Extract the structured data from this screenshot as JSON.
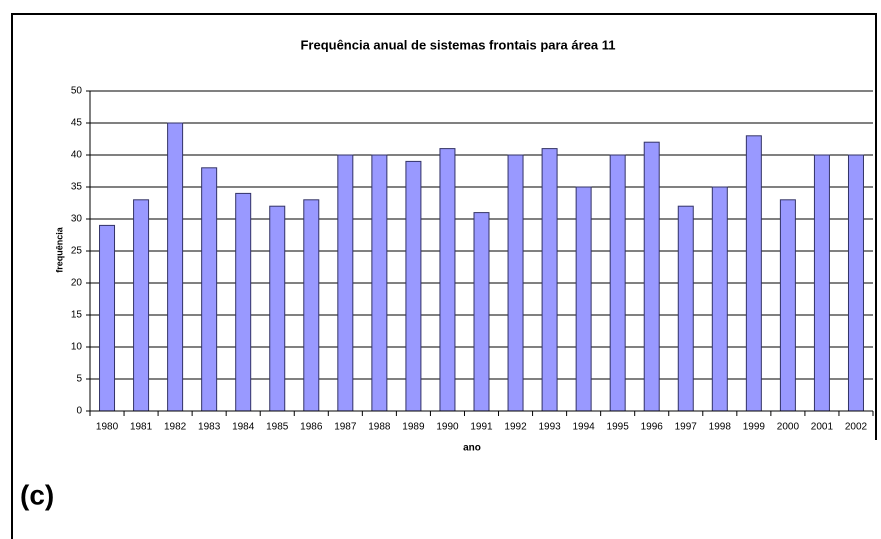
{
  "label": "(c)",
  "chart_data": {
    "type": "bar",
    "title": "Frequência anual de sistemas frontais para área 11",
    "x_label": "ano",
    "y_label": "frequência",
    "categories": [
      "1980",
      "1981",
      "1982",
      "1983",
      "1984",
      "1985",
      "1986",
      "1987",
      "1988",
      "1989",
      "1990",
      "1991",
      "1992",
      "1993",
      "1994",
      "1995",
      "1996",
      "1997",
      "1998",
      "1999",
      "2000",
      "2001",
      "2002"
    ],
    "values": [
      29,
      33,
      45,
      38,
      34,
      32,
      33,
      40,
      40,
      39,
      41,
      31,
      40,
      41,
      35,
      40,
      42,
      32,
      35,
      43,
      33,
      40,
      40
    ],
    "color": "#9999ff",
    "ylim": [
      0,
      50
    ],
    "yticks": [
      0,
      5,
      10,
      15,
      20,
      25,
      30,
      35,
      40,
      45,
      50
    ],
    "grid": true
  }
}
